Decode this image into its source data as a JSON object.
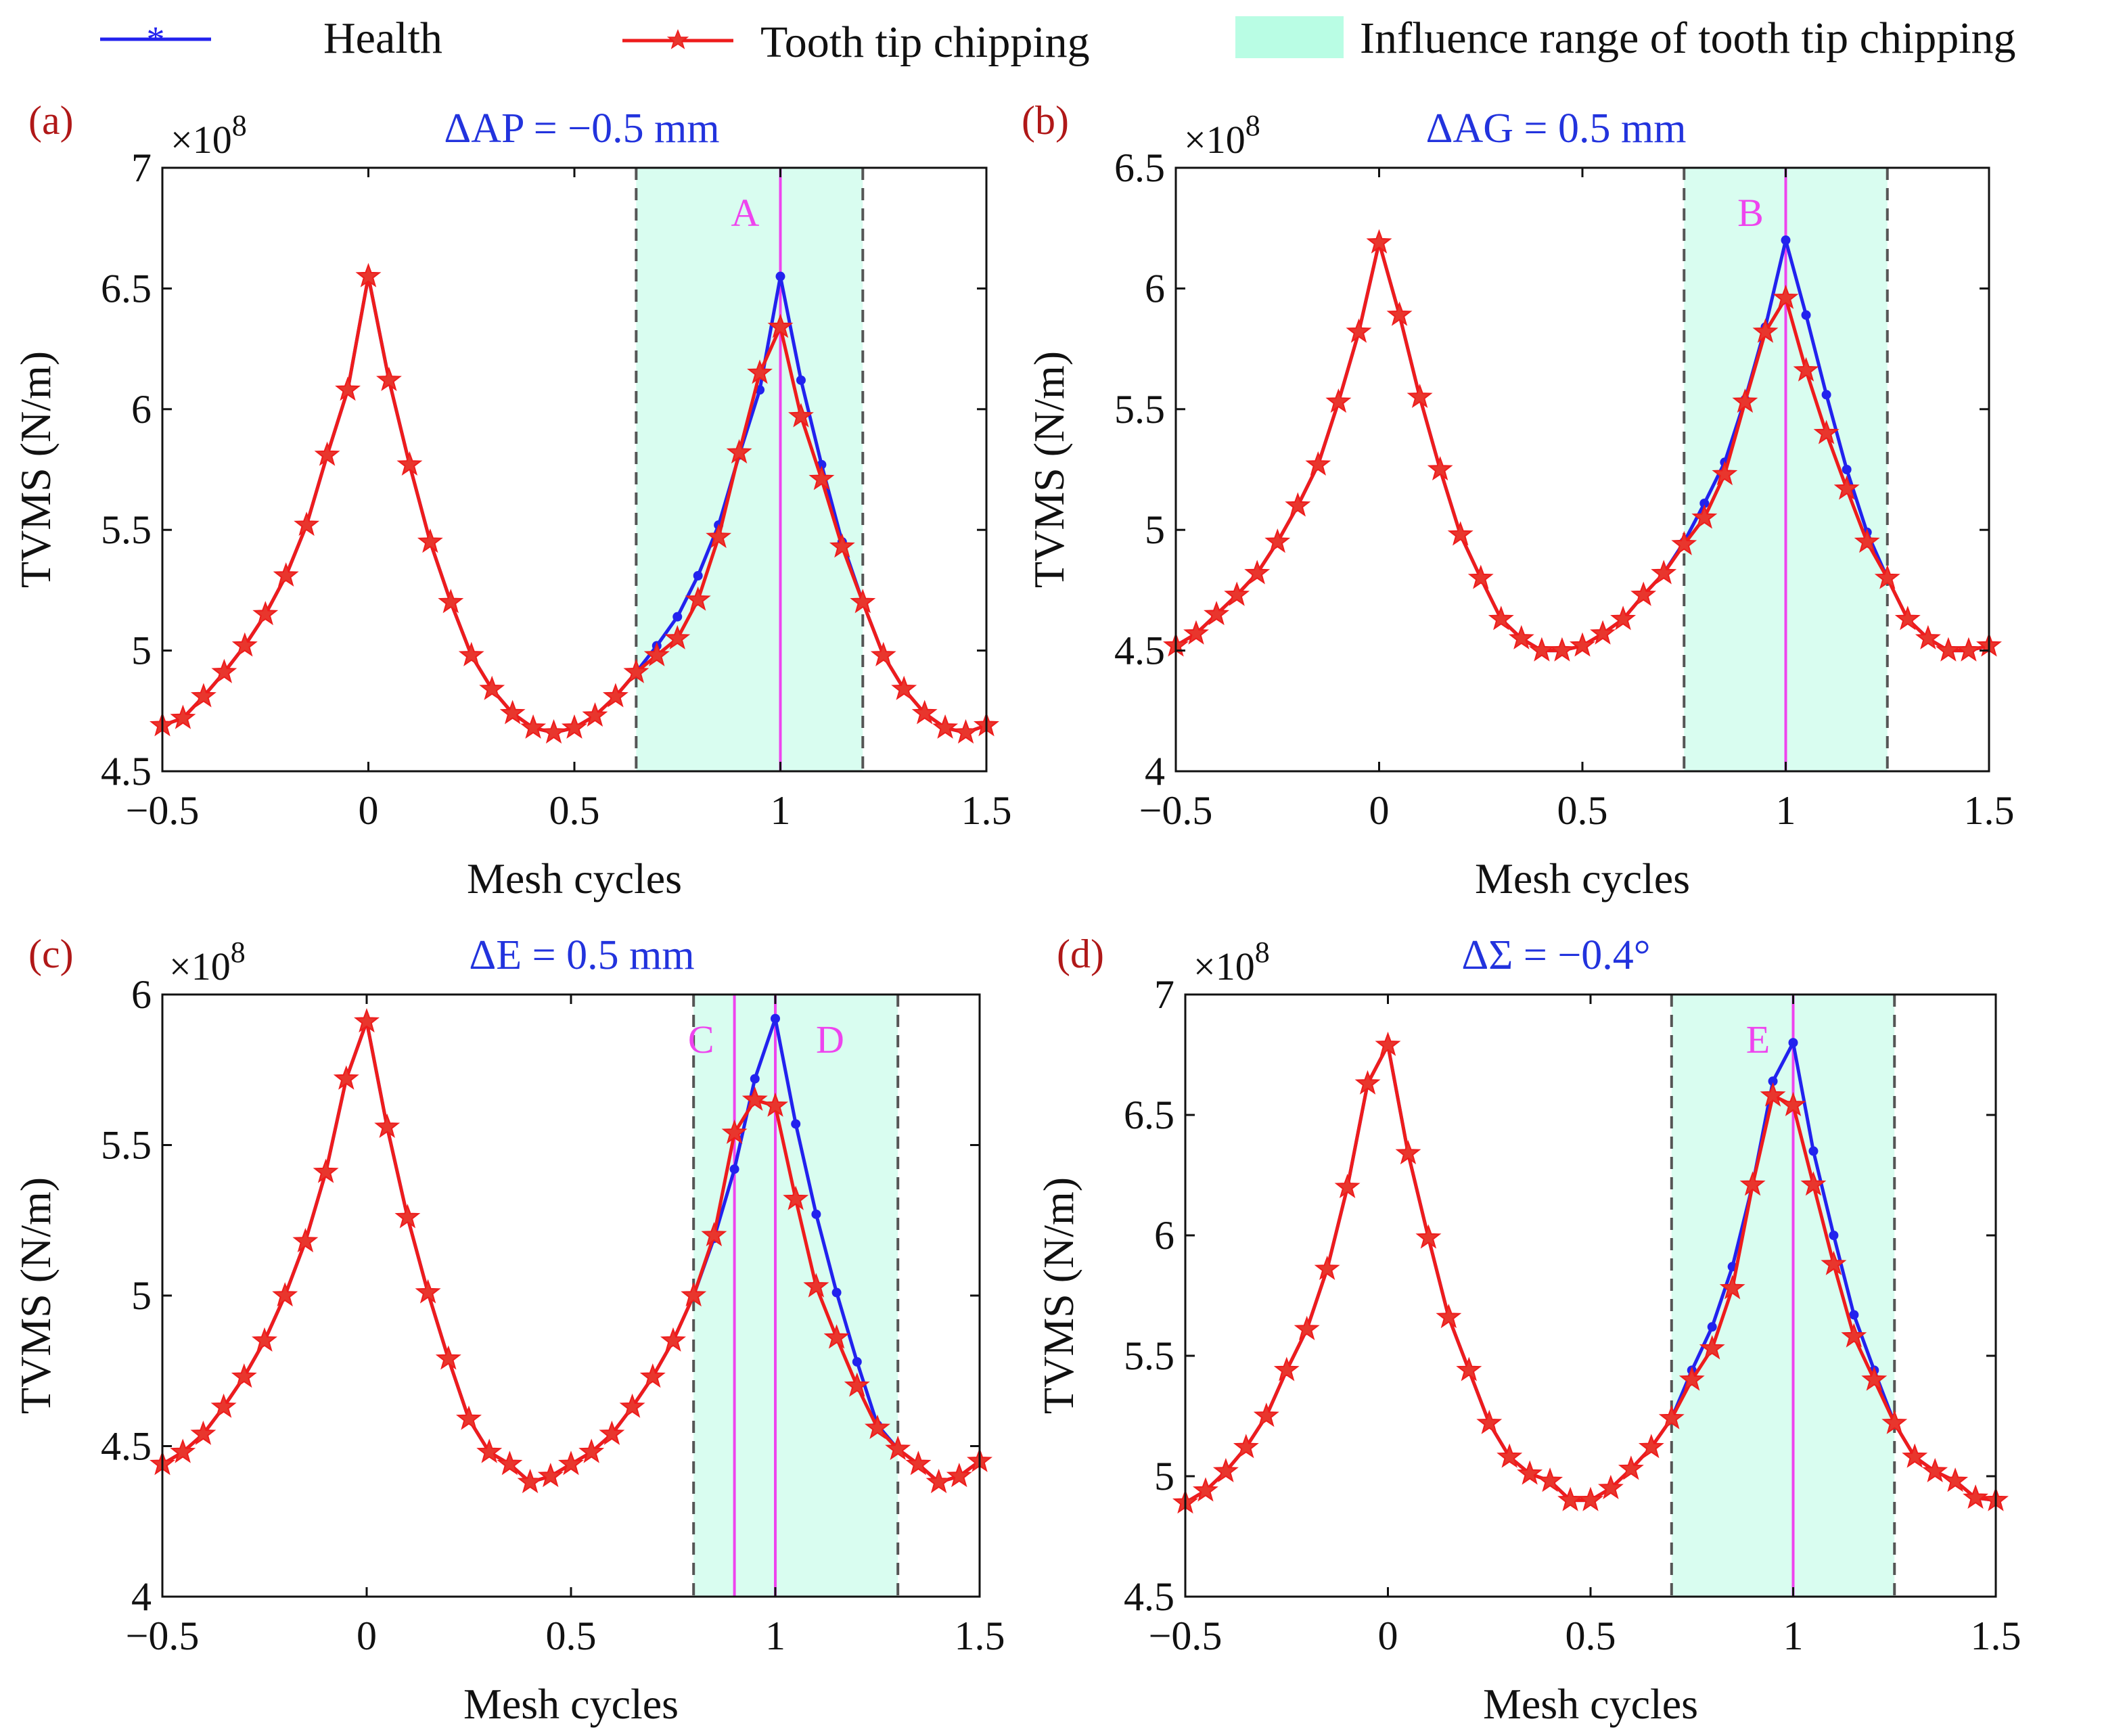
{
  "legend": {
    "health_label": "Health",
    "chipping_label": "Tooth tip chipping",
    "range_label": "Influence range of tooth tip chipping"
  },
  "colors": {
    "health": "#2222ee",
    "chipping": "#ee1c1c",
    "chipping_marker": "#e8362d",
    "range_fill": "#d9fdf0",
    "range_legend": "#b9fde4",
    "fault_line": "#ee44ee",
    "dash": "#555555",
    "panel_label": "#b01818",
    "param_title": "#2233dd"
  },
  "chart_data": [
    {
      "type": "line",
      "panel_label": "(a)",
      "title": "ΔAP = −0.5 mm",
      "xlabel": "Mesh cycles",
      "ylabel": "TVMS (N/m)",
      "exponent_base": "×10",
      "exponent": "8",
      "xlim": [
        -0.5,
        1.5
      ],
      "ylim": [
        4.5,
        7
      ],
      "xticks": [
        -0.5,
        0,
        0.5,
        1,
        1.5
      ],
      "xtick_labels": [
        "−0.5",
        "0",
        "0.5",
        "1",
        "1.5"
      ],
      "yticks": [
        4.5,
        5,
        5.5,
        6,
        6.5,
        7
      ],
      "ytick_labels": [
        "4.5",
        "5",
        "5.5",
        "6",
        "6.5",
        "7"
      ],
      "influence_range": [
        0.65,
        1.2
      ],
      "fault_lines": [
        {
          "x": 1,
          "label": "A"
        }
      ],
      "x": [
        -0.5,
        -0.45,
        -0.4,
        -0.35,
        -0.3,
        -0.25,
        -0.2,
        -0.15,
        -0.1,
        -0.05,
        0,
        0.05,
        0.1,
        0.15,
        0.2,
        0.25,
        0.3,
        0.35,
        0.4,
        0.45,
        0.5,
        0.55,
        0.6,
        0.65,
        0.7,
        0.75,
        0.8,
        0.85,
        0.9,
        0.95,
        1,
        1.05,
        1.1,
        1.15,
        1.2,
        1.25,
        1.3,
        1.35,
        1.4,
        1.45,
        1.5
      ],
      "series": [
        {
          "name": "Health",
          "values": [
            4.69,
            4.72,
            4.81,
            4.91,
            5.02,
            5.15,
            5.31,
            5.52,
            5.81,
            6.08,
            6.55,
            6.12,
            5.77,
            5.45,
            5.2,
            4.98,
            4.84,
            4.74,
            4.68,
            4.66,
            4.68,
            4.73,
            4.81,
            4.91,
            5.02,
            5.14,
            5.31,
            5.52,
            5.81,
            6.08,
            6.55,
            6.12,
            5.77,
            5.45,
            5.2,
            4.98,
            4.84,
            4.74,
            4.68,
            4.66,
            4.69
          ]
        },
        {
          "name": "Tooth tip chipping",
          "values": [
            4.69,
            4.72,
            4.81,
            4.91,
            5.02,
            5.15,
            5.31,
            5.52,
            5.81,
            6.08,
            6.55,
            6.12,
            5.77,
            5.45,
            5.2,
            4.98,
            4.84,
            4.74,
            4.68,
            4.66,
            4.68,
            4.73,
            4.81,
            4.91,
            4.98,
            5.05,
            5.21,
            5.47,
            5.82,
            6.15,
            6.34,
            5.97,
            5.71,
            5.43,
            5.2,
            4.98,
            4.84,
            4.74,
            4.68,
            4.66,
            4.69
          ]
        }
      ]
    },
    {
      "type": "line",
      "panel_label": "(b)",
      "title": "ΔAG = 0.5 mm",
      "xlabel": "Mesh cycles",
      "ylabel": "TVMS (N/m)",
      "exponent_base": "×10",
      "exponent": "8",
      "xlim": [
        -0.5,
        1.5
      ],
      "ylim": [
        4,
        6.5
      ],
      "xticks": [
        -0.5,
        0,
        0.5,
        1,
        1.5
      ],
      "xtick_labels": [
        "−0.5",
        "0",
        "0.5",
        "1",
        "1.5"
      ],
      "yticks": [
        4,
        4.5,
        5,
        5.5,
        6,
        6.5
      ],
      "ytick_labels": [
        "4",
        "4.5",
        "5",
        "5.5",
        "6",
        "6.5"
      ],
      "influence_range": [
        0.75,
        1.25
      ],
      "fault_lines": [
        {
          "x": 1,
          "label": "B"
        }
      ],
      "x": [
        -0.5,
        -0.45,
        -0.4,
        -0.35,
        -0.3,
        -0.25,
        -0.2,
        -0.15,
        -0.1,
        -0.05,
        0,
        0.05,
        0.1,
        0.15,
        0.2,
        0.25,
        0.3,
        0.35,
        0.4,
        0.45,
        0.5,
        0.55,
        0.6,
        0.65,
        0.7,
        0.75,
        0.8,
        0.85,
        0.9,
        0.95,
        1,
        1.05,
        1.1,
        1.15,
        1.2,
        1.25,
        1.3,
        1.35,
        1.4,
        1.45,
        1.5
      ],
      "series": [
        {
          "name": "Health",
          "values": [
            4.52,
            4.57,
            4.65,
            4.73,
            4.82,
            4.95,
            5.1,
            5.27,
            5.53,
            5.82,
            6.19,
            5.89,
            5.55,
            5.25,
            4.98,
            4.8,
            4.63,
            4.55,
            4.5,
            4.5,
            4.52,
            4.57,
            4.63,
            4.73,
            4.82,
            4.95,
            5.11,
            5.28,
            5.54,
            5.84,
            6.2,
            5.89,
            5.56,
            5.25,
            4.99,
            4.8,
            4.63,
            4.55,
            4.5,
            4.5,
            4.52
          ]
        },
        {
          "name": "Tooth tip chipping",
          "values": [
            4.52,
            4.57,
            4.65,
            4.73,
            4.82,
            4.95,
            5.1,
            5.27,
            5.53,
            5.82,
            6.19,
            5.89,
            5.55,
            5.25,
            4.98,
            4.8,
            4.63,
            4.55,
            4.5,
            4.5,
            4.52,
            4.57,
            4.63,
            4.73,
            4.82,
            4.94,
            5.05,
            5.23,
            5.53,
            5.82,
            5.96,
            5.66,
            5.4,
            5.17,
            4.95,
            4.8,
            4.63,
            4.55,
            4.5,
            4.5,
            4.52
          ]
        }
      ]
    },
    {
      "type": "line",
      "panel_label": "(c)",
      "title": "ΔE = 0.5 mm",
      "xlabel": "Mesh cycles",
      "ylabel": "TVMS (N/m)",
      "exponent_base": "×10",
      "exponent": "8",
      "xlim": [
        -0.5,
        1.5
      ],
      "ylim": [
        4,
        6
      ],
      "xticks": [
        -0.5,
        0,
        0.5,
        1,
        1.5
      ],
      "xtick_labels": [
        "−0.5",
        "0",
        "0.5",
        "1",
        "1.5"
      ],
      "yticks": [
        4,
        4.5,
        5,
        5.5,
        6
      ],
      "ytick_labels": [
        "4",
        "4.5",
        "5",
        "5.5",
        "6"
      ],
      "influence_range": [
        0.8,
        1.3
      ],
      "fault_lines": [
        {
          "x": 0.9,
          "label": "C"
        },
        {
          "x": 1,
          "label": "D"
        }
      ],
      "x": [
        -0.5,
        -0.45,
        -0.4,
        -0.35,
        -0.3,
        -0.25,
        -0.2,
        -0.15,
        -0.1,
        -0.05,
        0,
        0.05,
        0.1,
        0.15,
        0.2,
        0.25,
        0.3,
        0.35,
        0.4,
        0.45,
        0.5,
        0.55,
        0.6,
        0.65,
        0.7,
        0.75,
        0.8,
        0.85,
        0.9,
        0.95,
        1,
        1.05,
        1.1,
        1.15,
        1.2,
        1.25,
        1.3,
        1.35,
        1.4,
        1.45,
        1.5
      ],
      "series": [
        {
          "name": "Health",
          "values": [
            4.44,
            4.48,
            4.54,
            4.63,
            4.73,
            4.85,
            5.0,
            5.18,
            5.41,
            5.72,
            5.91,
            5.56,
            5.26,
            5.01,
            4.79,
            4.59,
            4.48,
            4.44,
            4.38,
            4.4,
            4.44,
            4.48,
            4.54,
            4.63,
            4.73,
            4.85,
            5.0,
            5.19,
            5.42,
            5.72,
            5.92,
            5.57,
            5.27,
            5.01,
            4.78,
            4.57,
            4.49,
            4.44,
            4.38,
            4.4,
            4.45
          ]
        },
        {
          "name": "Tooth tip chipping",
          "values": [
            4.44,
            4.48,
            4.54,
            4.63,
            4.73,
            4.85,
            5.0,
            5.18,
            5.41,
            5.72,
            5.91,
            5.56,
            5.26,
            5.01,
            4.79,
            4.59,
            4.48,
            4.44,
            4.38,
            4.4,
            4.44,
            4.48,
            4.54,
            4.63,
            4.73,
            4.85,
            5.0,
            5.2,
            5.54,
            5.65,
            5.63,
            5.32,
            5.03,
            4.86,
            4.7,
            4.56,
            4.49,
            4.44,
            4.38,
            4.4,
            4.45
          ]
        }
      ]
    },
    {
      "type": "line",
      "panel_label": "(d)",
      "title": "ΔΣ = −0.4°",
      "xlabel": "Mesh cycles",
      "ylabel": "TVMS (N/m)",
      "exponent_base": "×10",
      "exponent": "8",
      "xlim": [
        -0.5,
        1.5
      ],
      "ylim": [
        4.5,
        7
      ],
      "xticks": [
        -0.5,
        0,
        0.5,
        1,
        1.5
      ],
      "xtick_labels": [
        "−0.5",
        "0",
        "0.5",
        "1",
        "1.5"
      ],
      "yticks": [
        4.5,
        5,
        5.5,
        6,
        6.5,
        7
      ],
      "ytick_labels": [
        "4.5",
        "5",
        "5.5",
        "6",
        "6.5",
        "7"
      ],
      "influence_range": [
        0.7,
        1.25
      ],
      "fault_lines": [
        {
          "x": 1,
          "label": "E"
        }
      ],
      "x": [
        -0.5,
        -0.45,
        -0.4,
        -0.35,
        -0.3,
        -0.25,
        -0.2,
        -0.15,
        -0.1,
        -0.05,
        0,
        0.05,
        0.1,
        0.15,
        0.2,
        0.25,
        0.3,
        0.35,
        0.4,
        0.45,
        0.5,
        0.55,
        0.6,
        0.65,
        0.7,
        0.75,
        0.8,
        0.85,
        0.9,
        0.95,
        1,
        1.05,
        1.1,
        1.15,
        1.2,
        1.25,
        1.3,
        1.35,
        1.4,
        1.45,
        1.5
      ],
      "series": [
        {
          "name": "Health",
          "values": [
            4.89,
            4.94,
            5.02,
            5.12,
            5.25,
            5.44,
            5.61,
            5.86,
            6.2,
            6.63,
            6.79,
            6.34,
            5.99,
            5.66,
            5.44,
            5.22,
            5.08,
            5.01,
            4.98,
            4.9,
            4.9,
            4.95,
            5.03,
            5.12,
            5.24,
            5.44,
            5.62,
            5.87,
            6.21,
            6.64,
            6.8,
            6.35,
            6.0,
            5.67,
            5.44,
            5.22,
            5.08,
            5.02,
            4.98,
            4.91,
            4.9
          ]
        },
        {
          "name": "Tooth tip chipping",
          "values": [
            4.89,
            4.94,
            5.02,
            5.12,
            5.25,
            5.44,
            5.61,
            5.86,
            6.2,
            6.63,
            6.79,
            6.34,
            5.99,
            5.66,
            5.44,
            5.22,
            5.08,
            5.01,
            4.98,
            4.9,
            4.9,
            4.95,
            5.03,
            5.12,
            5.24,
            5.4,
            5.53,
            5.78,
            6.21,
            6.58,
            6.54,
            6.21,
            5.88,
            5.58,
            5.4,
            5.22,
            5.08,
            5.02,
            4.98,
            4.91,
            4.9
          ]
        }
      ]
    }
  ]
}
